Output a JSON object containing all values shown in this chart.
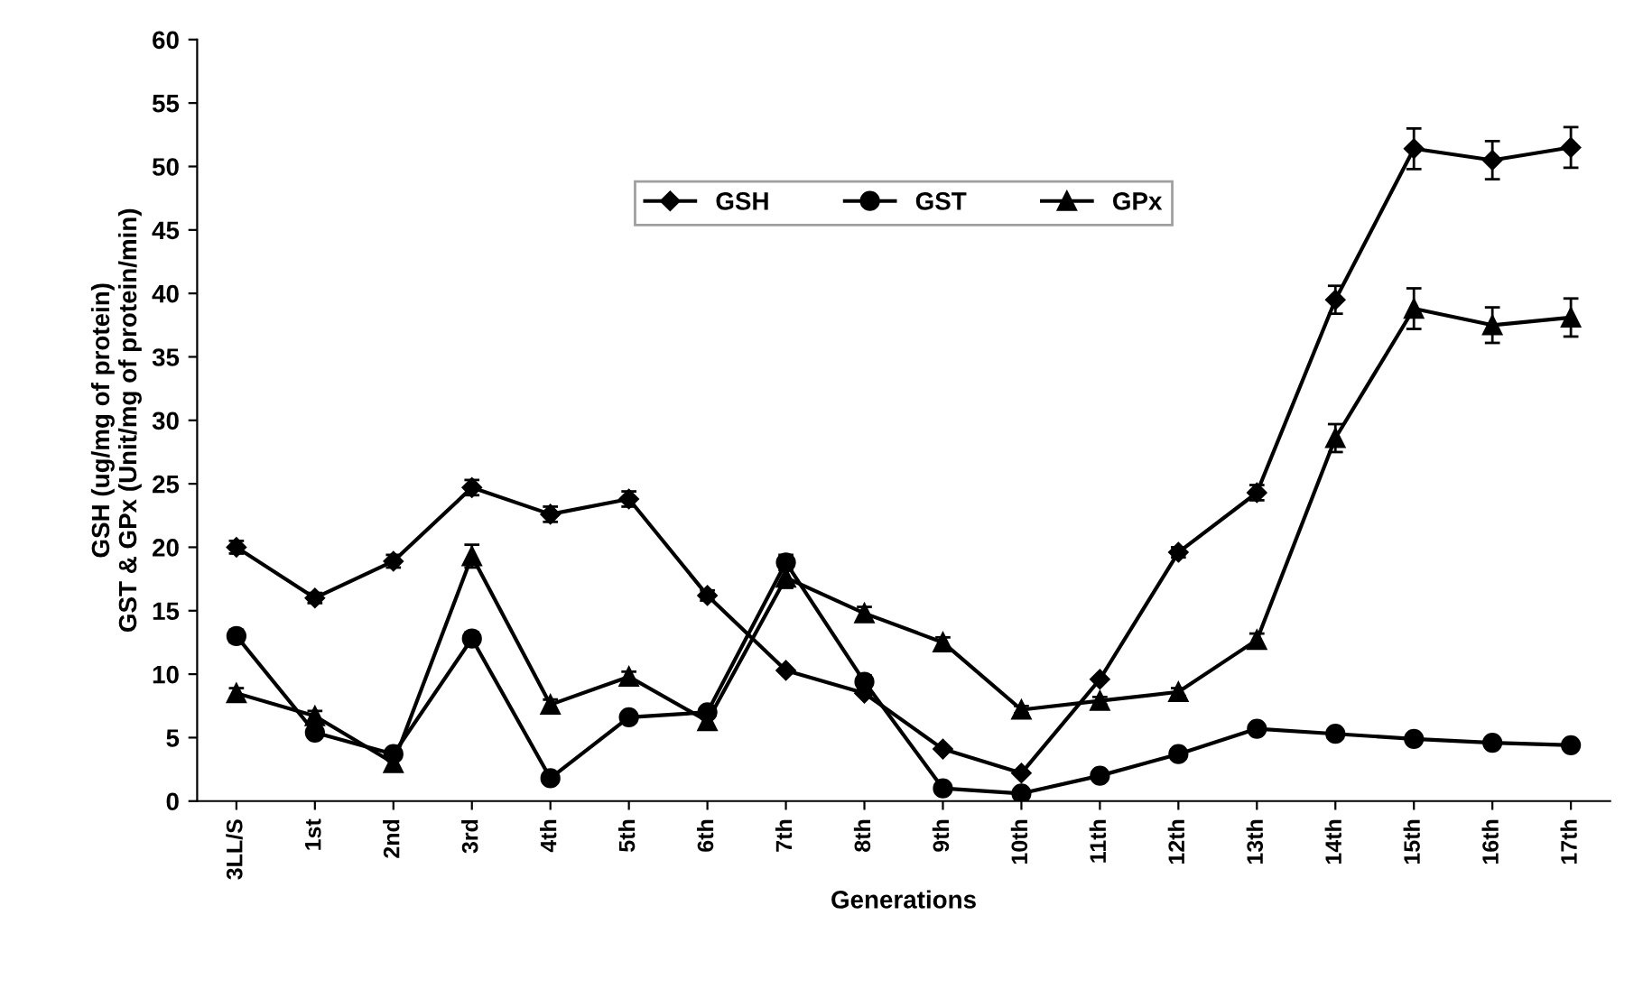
{
  "chart_data": {
    "type": "line",
    "xlabel": "Generations",
    "ylabel": "GSH (ug/mg of protein)\nGST & GPx (Unit/mg of protein/min)",
    "categories": [
      "3LL/S",
      "1st",
      "2nd",
      "3rd",
      "4th",
      "5th",
      "6th",
      "7th",
      "8th",
      "9th",
      "10th",
      "11th",
      "12th",
      "13th",
      "14th",
      "15th",
      "16th",
      "17th"
    ],
    "series": [
      {
        "name": "GSH",
        "color": "#000000",
        "marker": "diamond",
        "values": [
          20,
          16,
          18.9,
          24.7,
          22.6,
          23.8,
          16.2,
          10.3,
          8.5,
          4.1,
          2.2,
          9.6,
          19.6,
          24.3,
          39.5,
          51.4,
          50.5,
          51.5
        ],
        "errors": [
          0.5,
          0.4,
          0.5,
          0.6,
          0.6,
          0.6,
          0.4,
          null,
          null,
          null,
          null,
          null,
          0.4,
          0.6,
          1.1,
          1.6,
          1.5,
          1.6
        ]
      },
      {
        "name": "GST",
        "color": "#000000",
        "marker": "circle",
        "values": [
          13,
          5.4,
          3.7,
          12.8,
          1.8,
          6.6,
          7,
          18.8,
          9.4,
          1.0,
          0.6,
          2.0,
          3.7,
          5.7,
          5.3,
          4.9,
          4.6,
          4.4
        ],
        "errors": [
          0.5,
          null,
          null,
          0.5,
          null,
          null,
          null,
          0.6,
          0.5,
          null,
          null,
          null,
          null,
          null,
          null,
          null,
          null,
          null
        ]
      },
      {
        "name": "GPx",
        "color": "#000000",
        "marker": "triangle",
        "values": [
          8.5,
          6.7,
          3.0,
          19.3,
          7.6,
          9.8,
          6.3,
          17.6,
          14.8,
          12.5,
          7.2,
          7.9,
          8.6,
          12.7,
          28.6,
          38.8,
          37.5,
          38.1
        ],
        "errors": [
          0.4,
          0.4,
          0.5,
          0.9,
          0.4,
          0.4,
          0.4,
          0.8,
          0.5,
          0.4,
          0.3,
          0.3,
          0.3,
          0.5,
          1.1,
          1.6,
          1.4,
          1.5
        ]
      }
    ],
    "ylim": [
      0,
      60
    ],
    "yticks": [
      0,
      5,
      10,
      15,
      20,
      25,
      30,
      35,
      40,
      45,
      50,
      55,
      60
    ],
    "grid": false,
    "legend": "top",
    "line_style": "solid"
  }
}
